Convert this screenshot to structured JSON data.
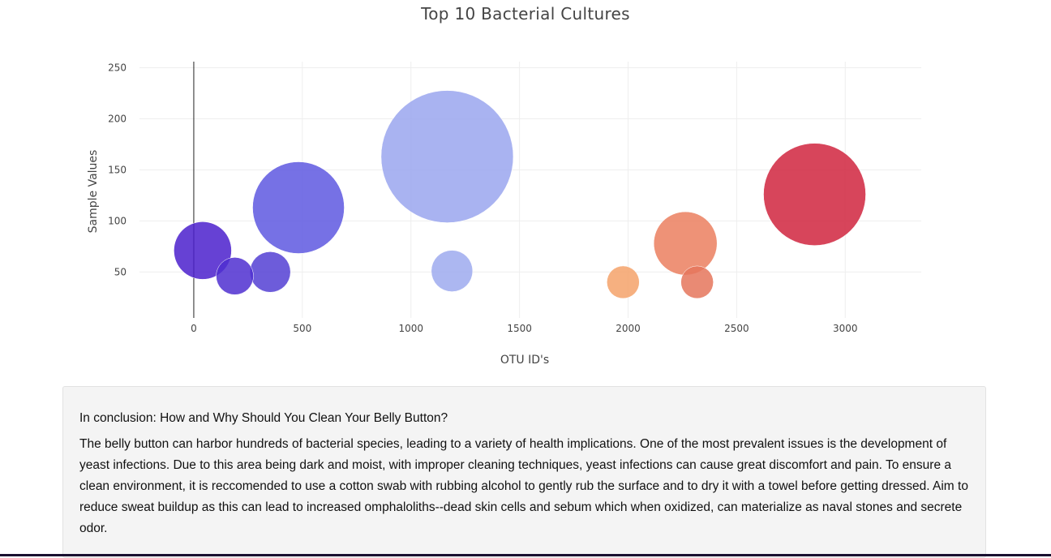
{
  "chart_data": {
    "type": "scatter",
    "title": "Top 10 Bacterial Cultures",
    "xlabel": "OTU ID's",
    "ylabel": "Sample Values",
    "xlim": [
      -250,
      3350
    ],
    "ylim": [
      5,
      256
    ],
    "xticks": [
      0,
      500,
      1000,
      1500,
      2000,
      2500,
      3000
    ],
    "yticks": [
      50,
      100,
      150,
      200,
      250
    ],
    "grid": true,
    "marker_sizes_reflect": "sample values",
    "points": [
      {
        "x": 41,
        "y": 71,
        "size": 71,
        "color": "#4b20cc"
      },
      {
        "x": 189,
        "y": 46,
        "size": 46,
        "color": "#4f2fd0"
      },
      {
        "x": 352,
        "y": 50,
        "size": 50,
        "color": "#5440d4"
      },
      {
        "x": 482,
        "y": 113,
        "size": 113,
        "color": "#5e58e0"
      },
      {
        "x": 1167,
        "y": 163,
        "size": 163,
        "color": "#9aa6ee"
      },
      {
        "x": 1189,
        "y": 51,
        "size": 51,
        "color": "#9eaaee"
      },
      {
        "x": 1977,
        "y": 40,
        "size": 40,
        "color": "#f4a26a"
      },
      {
        "x": 2264,
        "y": 78,
        "size": 78,
        "color": "#eb7f5f"
      },
      {
        "x": 2318,
        "y": 40,
        "size": 40,
        "color": "#e5755c"
      },
      {
        "x": 2859,
        "y": 126,
        "size": 126,
        "color": "#d0243e"
      }
    ]
  },
  "conclusion": {
    "heading": "In conclusion: How and Why Should You Clean Your Belly Button?",
    "body": "The belly button can harbor hundreds of bacterial species, leading to a variety of health implications. One of the most prevalent issues is the development of yeast infections. Due to this area being dark and moist, with improper cleaning techniques, yeast infections can cause great discomfort and pain. To ensure a clean environment, it is reccomended to use a cotton swab with rubbing alcohol to gently rub the surface and to dry it with a towel before getting dressed. Aim to reduce sweat buildup as this can lead to increased omphaloliths--dead skin cells and sebum which when oxidized, can materialize as naval stones and secrete odor."
  }
}
